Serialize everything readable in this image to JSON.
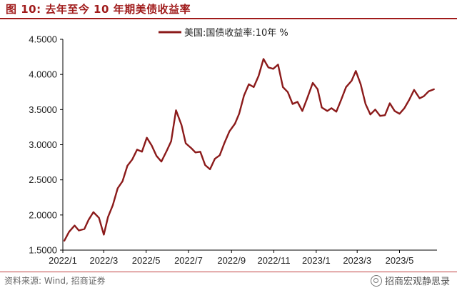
{
  "figure_title": "图 10:  去年至今 10 年期美债收益率",
  "source_note": "资料来源: Wind, 招商证券",
  "watermark": "招商宏观静思录",
  "watermark_icon": "wechat-icon",
  "colors": {
    "accent": "#a01b1b",
    "line": "#8b1a1a",
    "axis": "#000000"
  },
  "chart_data": {
    "type": "line",
    "title": "",
    "xlabel": "",
    "ylabel": "",
    "ylim": [
      1.5,
      4.5
    ],
    "y_ticks": [
      "4.5000",
      "4.0000",
      "3.5000",
      "3.0000",
      "2.5000",
      "2.0000",
      "1.5000"
    ],
    "x_tick_labels": [
      "2022/1",
      "2022/3",
      "2022/5",
      "2022/7",
      "2022/9",
      "2022/11",
      "2023/1",
      "2023/3",
      "2023/5"
    ],
    "grid": false,
    "legend_position": "top-center",
    "series": [
      {
        "name": "美国:国债收益率:10年 %",
        "x": [
          "2022-01-03",
          "2022-01-10",
          "2022-01-18",
          "2022-01-24",
          "2022-02-01",
          "2022-02-07",
          "2022-02-14",
          "2022-02-22",
          "2022-03-01",
          "2022-03-07",
          "2022-03-14",
          "2022-03-21",
          "2022-03-28",
          "2022-04-04",
          "2022-04-11",
          "2022-04-18",
          "2022-04-25",
          "2022-05-02",
          "2022-05-09",
          "2022-05-16",
          "2022-05-23",
          "2022-05-31",
          "2022-06-06",
          "2022-06-13",
          "2022-06-21",
          "2022-06-27",
          "2022-07-05",
          "2022-07-11",
          "2022-07-18",
          "2022-07-25",
          "2022-08-01",
          "2022-08-08",
          "2022-08-15",
          "2022-08-22",
          "2022-08-29",
          "2022-09-06",
          "2022-09-12",
          "2022-09-19",
          "2022-09-26",
          "2022-10-03",
          "2022-10-10",
          "2022-10-17",
          "2022-10-24",
          "2022-10-31",
          "2022-11-07",
          "2022-11-14",
          "2022-11-21",
          "2022-11-28",
          "2022-12-05",
          "2022-12-12",
          "2022-12-19",
          "2022-12-27",
          "2023-01-03",
          "2023-01-09",
          "2023-01-17",
          "2023-01-23",
          "2023-01-30",
          "2023-02-06",
          "2023-02-13",
          "2023-02-21",
          "2023-02-27",
          "2023-03-06",
          "2023-03-13",
          "2023-03-20",
          "2023-03-27",
          "2023-04-03",
          "2023-04-10",
          "2023-04-17",
          "2023-04-24",
          "2023-05-01",
          "2023-05-08",
          "2023-05-15",
          "2023-05-22",
          "2023-05-30",
          "2023-06-05",
          "2023-06-12",
          "2023-06-20"
        ],
        "values": [
          1.63,
          1.76,
          1.85,
          1.78,
          1.8,
          1.93,
          2.04,
          1.96,
          1.72,
          1.97,
          2.14,
          2.38,
          2.48,
          2.7,
          2.79,
          2.93,
          2.9,
          3.1,
          2.99,
          2.84,
          2.76,
          2.92,
          3.05,
          3.49,
          3.28,
          3.02,
          2.95,
          2.89,
          2.9,
          2.71,
          2.65,
          2.8,
          2.85,
          3.03,
          3.19,
          3.3,
          3.44,
          3.7,
          3.86,
          3.82,
          3.98,
          4.22,
          4.1,
          4.08,
          4.14,
          3.82,
          3.75,
          3.58,
          3.61,
          3.48,
          3.66,
          3.88,
          3.79,
          3.53,
          3.48,
          3.52,
          3.47,
          3.64,
          3.82,
          3.91,
          4.05,
          3.86,
          3.58,
          3.43,
          3.5,
          3.41,
          3.42,
          3.59,
          3.48,
          3.44,
          3.52,
          3.64,
          3.78,
          3.66,
          3.69,
          3.76,
          3.79
        ]
      }
    ]
  }
}
